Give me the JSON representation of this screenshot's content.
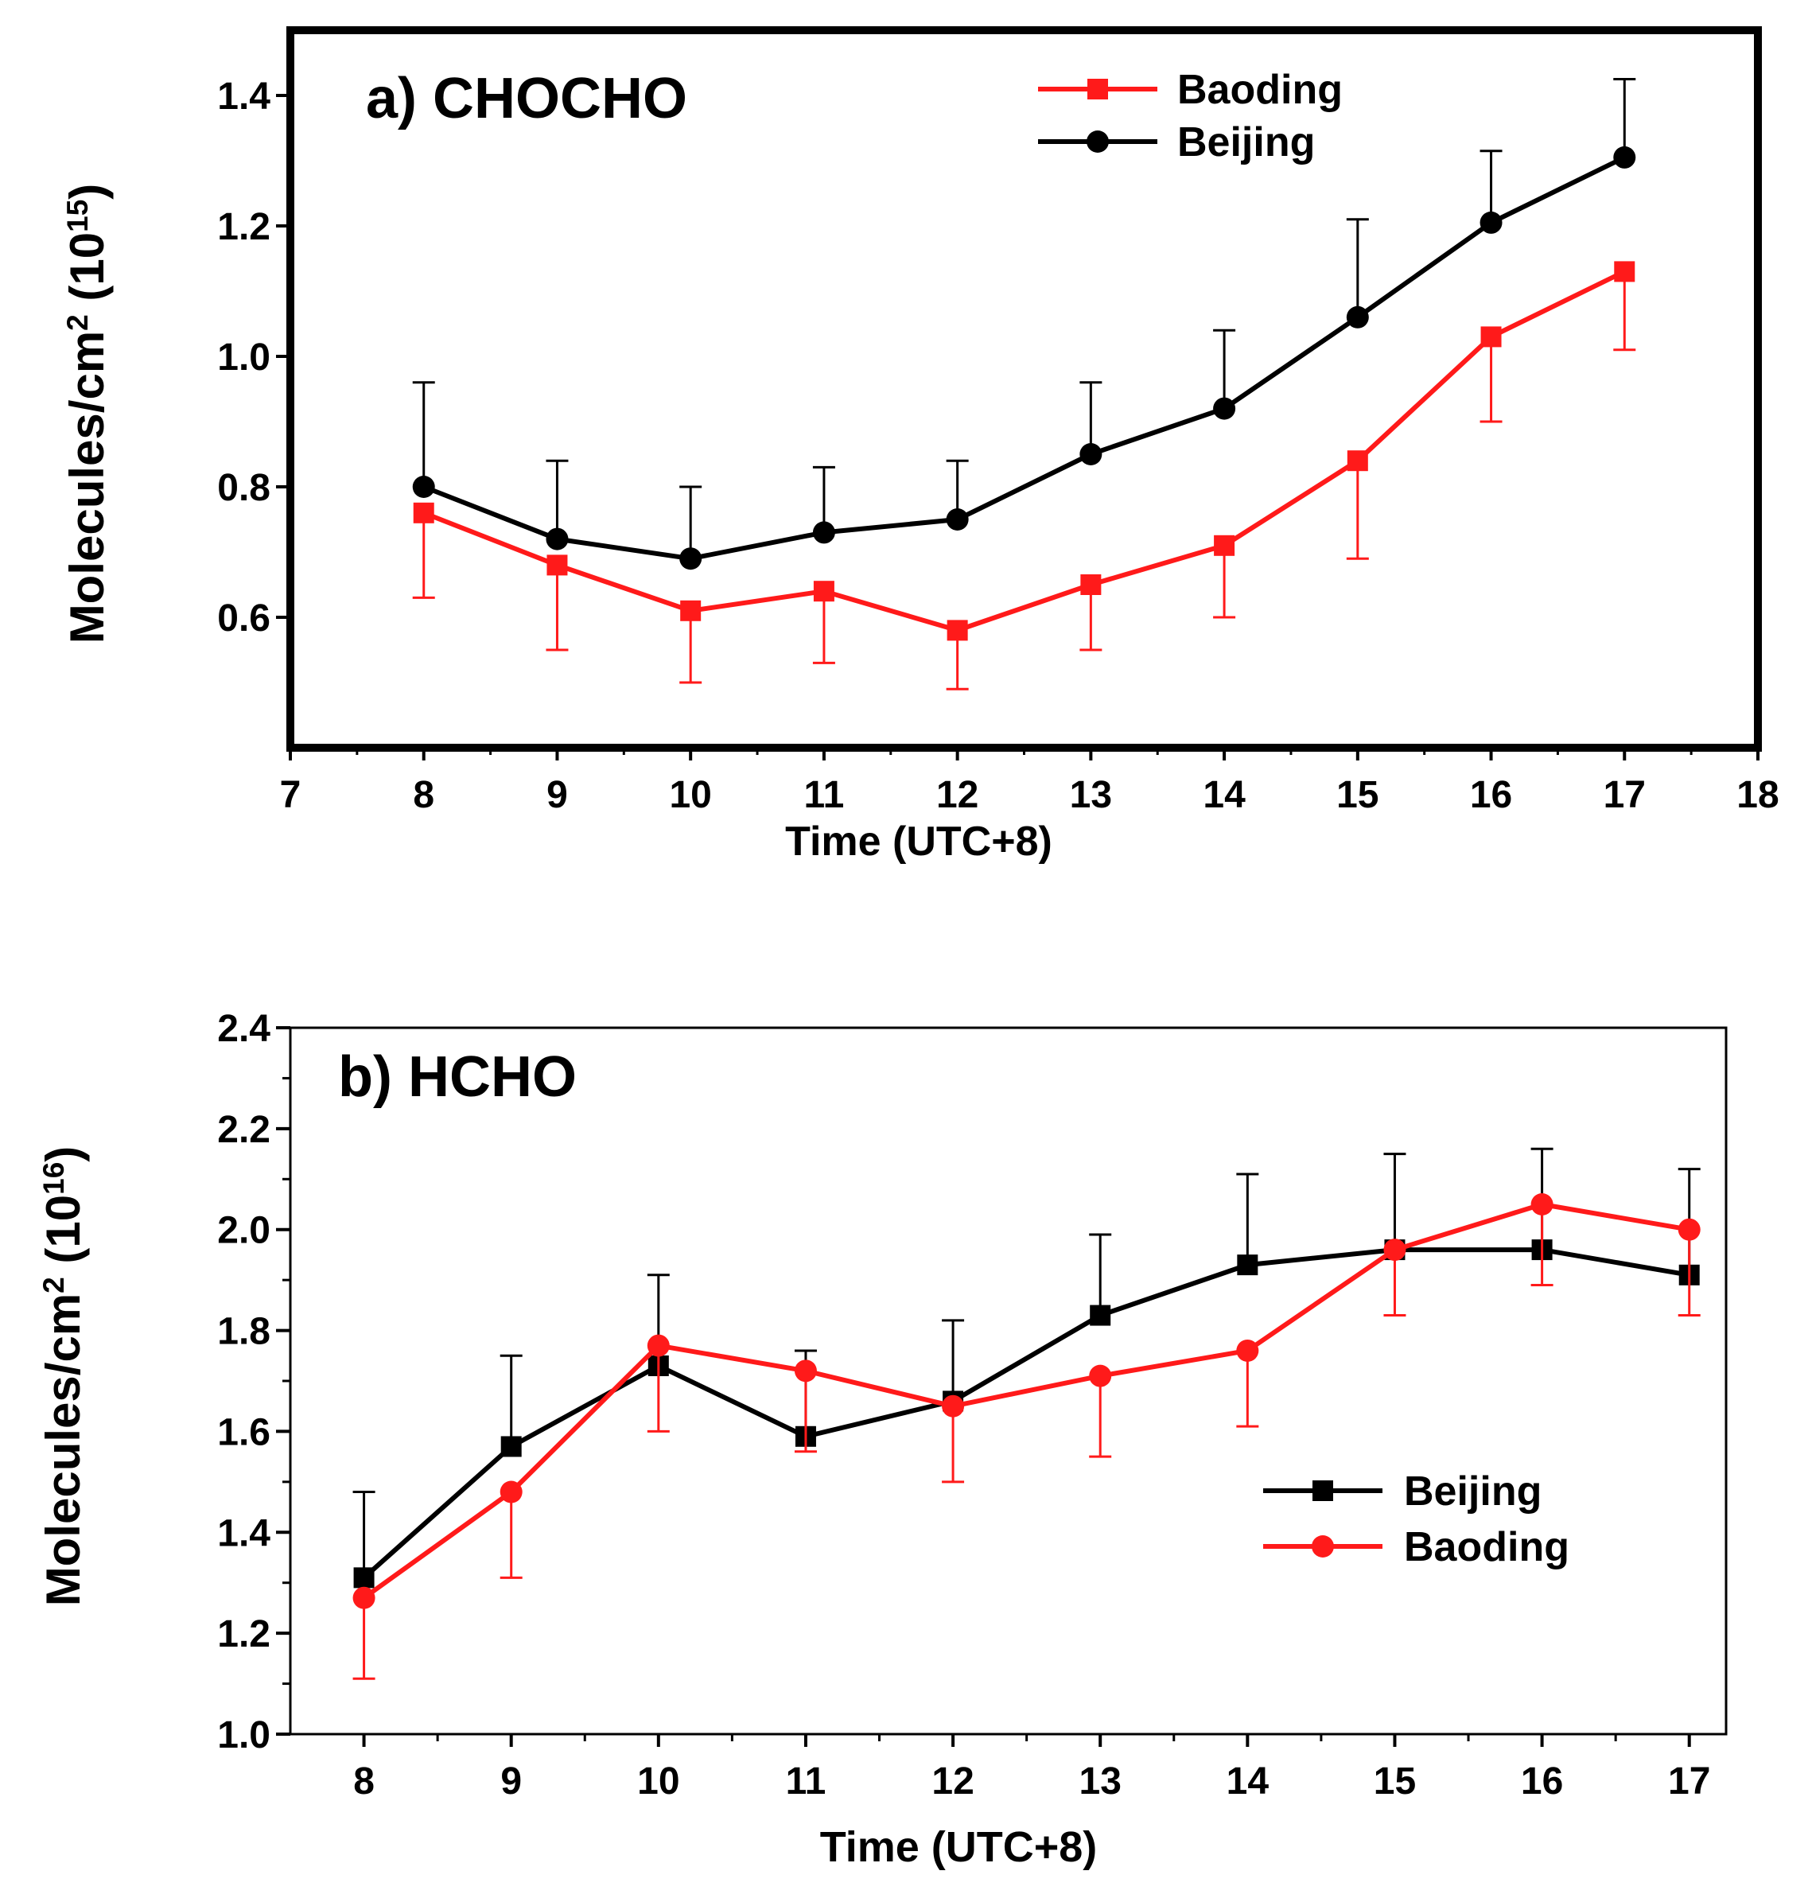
{
  "chart_data": [
    {
      "id": "chocho",
      "type": "line",
      "title": "a) CHOCHO",
      "xlabel": "Time (UTC+8)",
      "ylabel_main": "Molecules/cm",
      "ylabel_sup": "2",
      "ylabel_factor_base": "(10",
      "ylabel_factor_exp": "15",
      "ylabel_factor_close": ")",
      "xlim": [
        7,
        18
      ],
      "ylim": [
        0.4,
        1.5
      ],
      "xticks": [
        "7",
        "8",
        "9",
        "10",
        "11",
        "12",
        "13",
        "14",
        "15",
        "16",
        "17",
        "18"
      ],
      "yticks": [
        "0.6",
        "0.8",
        "1.0",
        "1.2",
        "1.4"
      ],
      "x": [
        8,
        9,
        10,
        11,
        12,
        13,
        14,
        15,
        16,
        17
      ],
      "legend_position": "top-right",
      "series": [
        {
          "name": "Baoding",
          "color": "#ff1a1a",
          "marker": "square",
          "values": [
            0.76,
            0.68,
            0.61,
            0.64,
            0.58,
            0.65,
            0.71,
            0.84,
            1.03,
            1.13
          ],
          "errors": [
            0.13,
            0.13,
            0.11,
            0.11,
            0.09,
            0.1,
            0.11,
            0.15,
            0.13,
            0.12
          ]
        },
        {
          "name": "Beijing",
          "color": "#000000",
          "marker": "circle",
          "values": [
            0.8,
            0.72,
            0.69,
            0.73,
            0.75,
            0.85,
            0.92,
            1.06,
            1.205,
            1.305
          ],
          "errors": [
            0.16,
            0.12,
            0.11,
            0.1,
            0.09,
            0.11,
            0.12,
            0.15,
            0.11,
            0.12
          ]
        }
      ]
    },
    {
      "id": "hcho",
      "type": "line",
      "title": "b) HCHO",
      "xlabel": "Time (UTC+8)",
      "ylabel_main": "Molecules/cm",
      "ylabel_sup": "2",
      "ylabel_factor_base": "(10",
      "ylabel_factor_exp": "16",
      "ylabel_factor_close": ")",
      "xlim": [
        7.5,
        17.25
      ],
      "ylim": [
        1.0,
        2.4
      ],
      "xticks": [
        "8",
        "9",
        "10",
        "11",
        "12",
        "13",
        "14",
        "15",
        "16",
        "17"
      ],
      "yticks": [
        "1.0",
        "1.2",
        "1.4",
        "1.6",
        "1.8",
        "2.0",
        "2.2",
        "2.4"
      ],
      "x": [
        8,
        9,
        10,
        11,
        12,
        13,
        14,
        15,
        16,
        17
      ],
      "legend_position": "bottom-right",
      "series": [
        {
          "name": "Beijing",
          "color": "#000000",
          "marker": "square",
          "values": [
            1.31,
            1.57,
            1.73,
            1.59,
            1.66,
            1.83,
            1.93,
            1.96,
            1.96,
            1.91
          ],
          "errors": [
            0.17,
            0.18,
            0.18,
            0.17,
            0.16,
            0.16,
            0.18,
            0.19,
            0.2,
            0.21
          ]
        },
        {
          "name": "Baoding",
          "color": "#ff1a1a",
          "marker": "circle",
          "values": [
            1.27,
            1.48,
            1.77,
            1.72,
            1.65,
            1.71,
            1.76,
            1.96,
            2.05,
            2.0
          ],
          "errors": [
            0.16,
            0.17,
            0.17,
            0.16,
            0.15,
            0.16,
            0.15,
            0.13,
            0.16,
            0.17
          ]
        }
      ]
    }
  ]
}
